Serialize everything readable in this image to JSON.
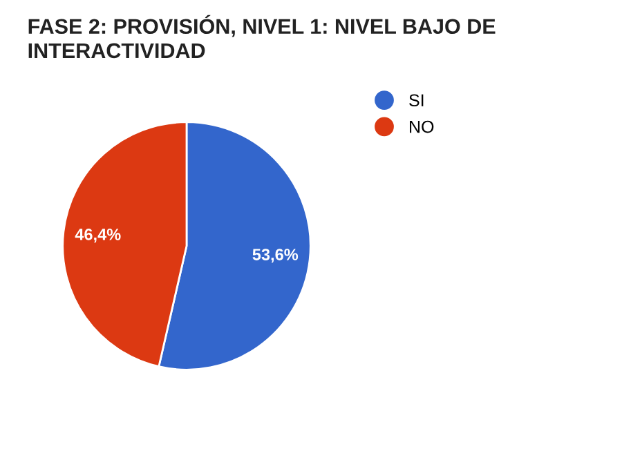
{
  "chart_data": {
    "type": "pie",
    "title": "FASE 2: PROVISIÓN, NIVEL 1: NIVEL BAJO DE\nINTERACTIVIDAD",
    "categories": [
      "SI",
      "NO"
    ],
    "values": [
      53.6,
      46.4
    ],
    "colors": [
      "#3366cc",
      "#dc3912"
    ],
    "value_labels": [
      "53,6%",
      "46,4%"
    ],
    "legend": "top right"
  }
}
